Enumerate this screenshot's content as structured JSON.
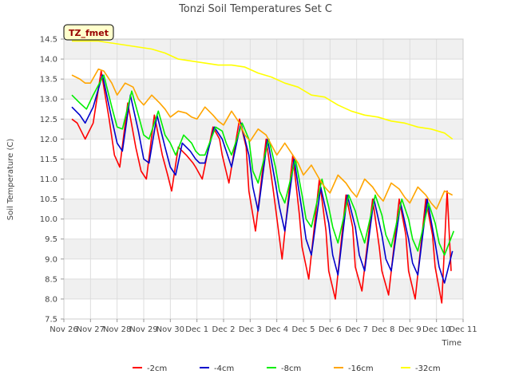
{
  "chart_data": {
    "type": "line",
    "title": "Tonzi Soil Temperatures Set C",
    "xlabel": "Time",
    "ylabel": "Soil Temperature (C)",
    "annotation": "TZ_fmet",
    "xlim": [
      0,
      15
    ],
    "ylim": [
      7.5,
      14.5
    ],
    "x_ticks": [
      0,
      1,
      2,
      3,
      4,
      5,
      6,
      7,
      8,
      9,
      10,
      11,
      12,
      13,
      14,
      15
    ],
    "x_tick_labels": [
      "Nov 26",
      "Nov 27",
      "Nov 28",
      "Nov 29",
      "Nov 30",
      "Dec 1",
      "Dec 2",
      "Dec 3",
      "Dec 4",
      "Dec 5",
      "Dec 6",
      "Dec 7",
      "Dec 8",
      "Dec 9",
      "Dec 10",
      "Dec 11"
    ],
    "y_ticks": [
      7.5,
      8.0,
      8.5,
      9.0,
      9.5,
      10.0,
      10.5,
      11.0,
      11.5,
      12.0,
      12.5,
      13.0,
      13.5,
      14.0,
      14.5
    ],
    "y_tick_labels": [
      "7.5",
      "8.0",
      "8.5",
      "9.0",
      "9.5",
      "10.0",
      "10.5",
      "11.0",
      "11.5",
      "12.0",
      "12.5",
      "13.0",
      "13.5",
      "14.0",
      "14.5"
    ],
    "grid": true,
    "legend_position": "bottom",
    "series": [
      {
        "name": "-2cm",
        "color": "#ff0000",
        "x": [
          0.3,
          0.5,
          0.65,
          0.8,
          1.1,
          1.4,
          1.7,
          1.9,
          2.1,
          2.4,
          2.7,
          2.9,
          3.1,
          3.4,
          3.7,
          3.9,
          4.05,
          4.3,
          4.6,
          4.85,
          4.95,
          5.2,
          5.6,
          5.85,
          5.95,
          6.2,
          6.6,
          6.85,
          6.95,
          7.2,
          7.6,
          7.85,
          7.95,
          8.2,
          8.6,
          8.85,
          8.95,
          9.2,
          9.6,
          9.85,
          9.95,
          10.2,
          10.6,
          10.85,
          10.95,
          11.2,
          11.6,
          11.85,
          11.95,
          12.2,
          12.6,
          12.85,
          12.95,
          13.2,
          13.6,
          13.85,
          13.95,
          14.2,
          14.4,
          14.55
        ],
        "y": [
          12.5,
          12.4,
          12.2,
          12.0,
          12.4,
          13.7,
          12.5,
          11.6,
          11.3,
          12.9,
          11.8,
          11.2,
          11.0,
          12.6,
          11.6,
          11.1,
          10.7,
          11.8,
          11.6,
          11.4,
          11.3,
          11.0,
          12.3,
          12.0,
          11.6,
          10.9,
          12.5,
          11.8,
          10.7,
          9.7,
          12.0,
          10.8,
          10.3,
          9.0,
          11.6,
          10.1,
          9.3,
          8.5,
          11.0,
          9.7,
          8.7,
          8.0,
          10.6,
          9.8,
          8.8,
          8.2,
          10.5,
          9.3,
          8.7,
          8.1,
          10.5,
          9.6,
          8.7,
          8.0,
          10.5,
          9.6,
          8.8,
          7.9,
          10.7,
          8.7
        ]
      },
      {
        "name": "-4cm",
        "color": "#0000cc",
        "x": [
          0.3,
          0.6,
          0.8,
          1.1,
          1.45,
          1.8,
          2.0,
          2.2,
          2.5,
          2.8,
          3.0,
          3.2,
          3.5,
          3.8,
          4.0,
          4.2,
          4.45,
          4.75,
          4.95,
          5.1,
          5.3,
          5.65,
          5.95,
          6.1,
          6.3,
          6.65,
          6.95,
          7.1,
          7.3,
          7.65,
          7.95,
          8.1,
          8.3,
          8.65,
          8.95,
          9.1,
          9.3,
          9.65,
          9.95,
          10.1,
          10.3,
          10.65,
          10.95,
          11.1,
          11.3,
          11.65,
          11.95,
          12.1,
          12.3,
          12.65,
          12.95,
          13.1,
          13.3,
          13.65,
          13.95,
          14.1,
          14.3,
          14.6
        ],
        "y": [
          12.8,
          12.6,
          12.4,
          12.8,
          13.6,
          12.5,
          11.9,
          11.7,
          13.1,
          12.2,
          11.5,
          11.4,
          12.6,
          11.8,
          11.3,
          11.1,
          11.9,
          11.7,
          11.5,
          11.4,
          11.4,
          12.3,
          12.0,
          11.7,
          11.3,
          12.4,
          11.6,
          10.8,
          10.2,
          12.0,
          10.9,
          10.3,
          9.7,
          11.5,
          10.2,
          9.5,
          9.1,
          10.8,
          9.9,
          9.1,
          8.6,
          10.6,
          9.8,
          9.1,
          8.7,
          10.5,
          9.6,
          9.0,
          8.7,
          10.4,
          9.5,
          8.9,
          8.6,
          10.5,
          9.4,
          8.8,
          8.4,
          9.2
        ]
      },
      {
        "name": "-8cm",
        "color": "#00ee00",
        "x": [
          0.3,
          0.6,
          0.85,
          1.1,
          1.5,
          1.8,
          2.0,
          2.2,
          2.55,
          2.8,
          3.0,
          3.2,
          3.55,
          3.8,
          4.0,
          4.2,
          4.5,
          4.8,
          4.95,
          5.1,
          5.3,
          5.7,
          5.95,
          6.1,
          6.3,
          6.7,
          6.95,
          7.1,
          7.3,
          7.7,
          7.95,
          8.1,
          8.3,
          8.7,
          8.95,
          9.1,
          9.3,
          9.7,
          9.95,
          10.1,
          10.3,
          10.7,
          10.95,
          11.1,
          11.3,
          11.7,
          11.95,
          12.1,
          12.3,
          12.7,
          12.95,
          13.1,
          13.3,
          13.7,
          13.95,
          14.1,
          14.3,
          14.65
        ],
        "y": [
          13.1,
          12.9,
          12.75,
          13.1,
          13.6,
          12.8,
          12.3,
          12.25,
          13.2,
          12.6,
          12.1,
          12.0,
          12.7,
          12.1,
          11.9,
          11.6,
          12.1,
          11.9,
          11.7,
          11.6,
          11.6,
          12.3,
          12.2,
          11.9,
          11.6,
          12.4,
          12.0,
          11.2,
          10.9,
          12.0,
          11.3,
          10.7,
          10.4,
          11.5,
          10.6,
          10.0,
          9.8,
          11.0,
          10.3,
          9.8,
          9.4,
          10.6,
          10.2,
          9.8,
          9.4,
          10.6,
          10.1,
          9.6,
          9.3,
          10.5,
          10.0,
          9.5,
          9.2,
          10.4,
          9.9,
          9.4,
          9.1,
          9.7
        ]
      },
      {
        "name": "-16cm",
        "color": "#ffa500",
        "x": [
          0.3,
          0.6,
          0.8,
          1.0,
          1.3,
          1.5,
          1.8,
          2.0,
          2.3,
          2.6,
          2.8,
          3.0,
          3.3,
          3.6,
          3.8,
          4.0,
          4.3,
          4.6,
          4.8,
          5.0,
          5.3,
          5.6,
          5.8,
          6.0,
          6.3,
          6.6,
          6.8,
          7.0,
          7.3,
          7.6,
          7.8,
          8.0,
          8.3,
          8.6,
          8.8,
          9.0,
          9.3,
          9.6,
          9.8,
          10.0,
          10.3,
          10.6,
          10.8,
          11.0,
          11.3,
          11.6,
          11.8,
          12.0,
          12.3,
          12.6,
          12.8,
          13.0,
          13.3,
          13.6,
          13.8,
          14.0,
          14.3,
          14.6
        ],
        "y": [
          13.6,
          13.5,
          13.4,
          13.4,
          13.75,
          13.7,
          13.4,
          13.1,
          13.4,
          13.3,
          13.0,
          12.85,
          13.1,
          12.9,
          12.75,
          12.55,
          12.7,
          12.65,
          12.55,
          12.5,
          12.8,
          12.6,
          12.45,
          12.35,
          12.7,
          12.4,
          12.1,
          11.95,
          12.25,
          12.1,
          11.85,
          11.6,
          11.9,
          11.6,
          11.4,
          11.1,
          11.35,
          11.0,
          10.8,
          10.65,
          11.1,
          10.9,
          10.7,
          10.55,
          11.0,
          10.8,
          10.6,
          10.45,
          10.9,
          10.75,
          10.55,
          10.4,
          10.8,
          10.6,
          10.4,
          10.25,
          10.7,
          10.6
        ]
      },
      {
        "name": "-32cm",
        "color": "#ffff00",
        "x": [
          0.3,
          0.8,
          1.3,
          1.8,
          2.3,
          2.8,
          3.3,
          3.8,
          4.3,
          4.8,
          5.3,
          5.8,
          6.3,
          6.8,
          7.3,
          7.8,
          8.3,
          8.8,
          9.3,
          9.8,
          10.3,
          10.8,
          11.3,
          11.8,
          12.3,
          12.8,
          13.3,
          13.8,
          14.3,
          14.6
        ],
        "y": [
          14.45,
          14.45,
          14.45,
          14.4,
          14.35,
          14.3,
          14.25,
          14.15,
          14.0,
          13.95,
          13.9,
          13.85,
          13.85,
          13.8,
          13.65,
          13.55,
          13.4,
          13.3,
          13.1,
          13.05,
          12.85,
          12.7,
          12.6,
          12.55,
          12.45,
          12.4,
          12.3,
          12.25,
          12.15,
          12.0
        ]
      }
    ]
  }
}
